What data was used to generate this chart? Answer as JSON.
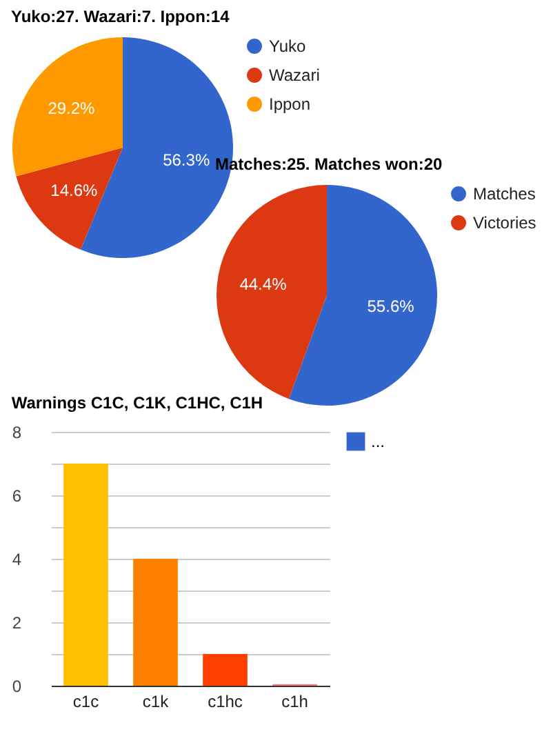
{
  "chart_data": [
    {
      "type": "pie",
      "title": "Yuko:27. Wazari:7. Ippon:14",
      "categories": [
        "Yuko",
        "Wazari",
        "Ippon"
      ],
      "values": [
        56.3,
        14.6,
        29.2
      ],
      "colors": [
        "#3366cc",
        "#dc3912",
        "#ff9900"
      ],
      "value_labels": [
        "56.3%",
        "14.6%",
        "29.2%"
      ],
      "legend": "right"
    },
    {
      "type": "pie",
      "title": "Matches:25. Matches won:20",
      "categories": [
        "Matches",
        "Victories"
      ],
      "values": [
        55.6,
        44.4
      ],
      "colors": [
        "#3366cc",
        "#dc3912"
      ],
      "value_labels": [
        "55.6%",
        "44.4%"
      ],
      "legend": "right"
    },
    {
      "type": "bar",
      "title": "Warnings C1C, C1K, C1HC, C1H",
      "categories": [
        "c1c",
        "c1k",
        "c1hc",
        "c1h"
      ],
      "series": [
        {
          "name": "...",
          "values": [
            7,
            4,
            1,
            0.05
          ]
        }
      ],
      "colors": [
        "#ffc000",
        "#ff8000",
        "#ff4000",
        "#f08080"
      ],
      "ylim": [
        0,
        8
      ],
      "yticks": [
        0,
        {
          "value": 1,
          "label": null
        },
        2,
        {
          "value": 3,
          "label": null
        },
        4,
        {
          "value": 5,
          "label": null
        },
        6,
        {
          "value": 7,
          "label": null
        },
        8
      ],
      "grid": "y",
      "legend": "right"
    }
  ]
}
